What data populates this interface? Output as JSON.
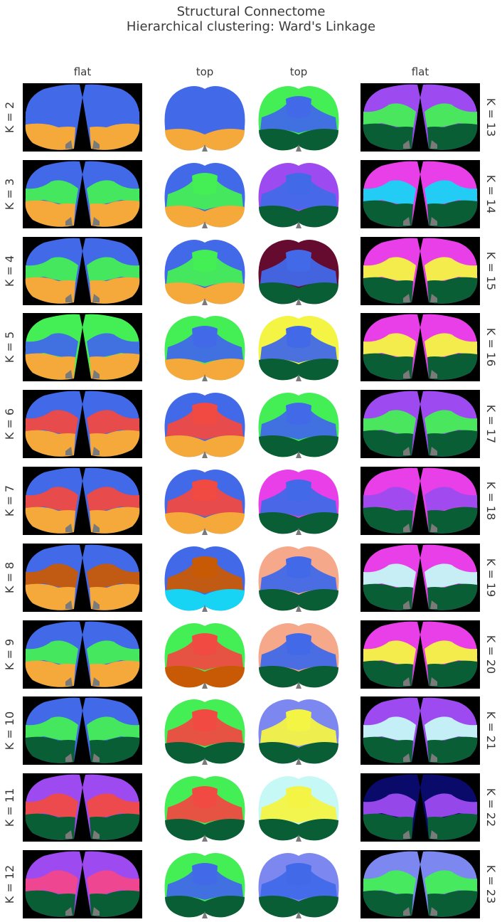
{
  "title_line1": "Structural Connectome",
  "title_line2": "Hierarchical clustering: Ward's Linkage",
  "column_headers": [
    "flat",
    "top",
    "top",
    "flat"
  ],
  "left_labels": [
    "K = 2",
    "K = 3",
    "K = 4",
    "K = 5",
    "K = 6",
    "K = 7",
    "K = 8",
    "K = 9",
    "K = 10",
    "K = 11",
    "K = 12"
  ],
  "right_labels": [
    "K = 13",
    "K = 14",
    "K = 15",
    "K = 16",
    "K = 17",
    "K = 18",
    "K = 19",
    "K = 20",
    "K = 21",
    "K = 22",
    "K = 23"
  ],
  "colors": {
    "blue": "#4169e8",
    "orange": "#f4a93a",
    "green": "#44ee55",
    "red": "#f04a42",
    "cyan": "#18d4f4",
    "darkorange": "#c85a06",
    "darkgreen": "#0a5e35",
    "purple": "#9d4bf0",
    "pink": "#f2468a",
    "lightpink": "#f59ac4",
    "maroon": "#650b30",
    "yellow": "#f4f445",
    "magenta": "#e83fe8",
    "salmon": "#f6a88a",
    "periwinkle": "#7d87f0",
    "lightcyan": "#c6f8f6",
    "navy": "#0a0a6a",
    "gray": "#7a7a7a"
  },
  "left_flat": [
    [
      "blue",
      "blue",
      "orange"
    ],
    [
      "blue",
      "green",
      "orange"
    ],
    [
      "blue",
      "green",
      "orange"
    ],
    [
      "green",
      "blue",
      "orange"
    ],
    [
      "blue",
      "red",
      "orange"
    ],
    [
      "blue",
      "red",
      "orange"
    ],
    [
      "blue",
      "darkorange",
      "orange"
    ],
    [
      "blue",
      "green",
      "orange"
    ],
    [
      "blue",
      "green",
      "darkgreen"
    ],
    [
      "purple",
      "red",
      "darkgreen"
    ],
    [
      "purple",
      "pink",
      "darkgreen"
    ]
  ],
  "left_top": [
    [
      "blue",
      "blue",
      "orange"
    ],
    [
      "blue",
      "green",
      "orange"
    ],
    [
      "blue",
      "green",
      "orange"
    ],
    [
      "green",
      "blue",
      "orange"
    ],
    [
      "blue",
      "red",
      "orange"
    ],
    [
      "blue",
      "red",
      "orange"
    ],
    [
      "blue",
      "darkorange",
      "cyan"
    ],
    [
      "green",
      "red",
      "darkorange"
    ],
    [
      "green",
      "red",
      "darkgreen"
    ],
    [
      "green",
      "red",
      "darkgreen"
    ],
    [
      "green",
      "blue",
      "darkgreen"
    ]
  ],
  "right_top": [
    [
      "green",
      "blue",
      "darkgreen"
    ],
    [
      "purple",
      "blue",
      "darkgreen"
    ],
    [
      "maroon",
      "blue",
      "darkgreen"
    ],
    [
      "yellow",
      "blue",
      "darkgreen"
    ],
    [
      "green",
      "blue",
      "darkgreen"
    ],
    [
      "magenta",
      "blue",
      "darkgreen"
    ],
    [
      "salmon",
      "blue",
      "darkgreen"
    ],
    [
      "salmon",
      "blue",
      "darkgreen"
    ],
    [
      "periwinkle",
      "yellow",
      "darkgreen"
    ],
    [
      "lightcyan",
      "yellow",
      "darkgreen"
    ],
    [
      "periwinkle",
      "blue",
      "darkgreen"
    ]
  ],
  "right_flat": [
    [
      "purple",
      "green",
      "darkgreen"
    ],
    [
      "magenta",
      "cyan",
      "darkgreen"
    ],
    [
      "magenta",
      "yellow",
      "darkgreen"
    ],
    [
      "magenta",
      "yellow",
      "darkgreen"
    ],
    [
      "purple",
      "green",
      "darkgreen"
    ],
    [
      "magenta",
      "purple",
      "darkgreen"
    ],
    [
      "magenta",
      "lightcyan",
      "darkgreen"
    ],
    [
      "magenta",
      "yellow",
      "darkgreen"
    ],
    [
      "purple",
      "lightcyan",
      "darkgreen"
    ],
    [
      "navy",
      "purple",
      "darkgreen"
    ],
    [
      "periwinkle",
      "green",
      "darkgreen"
    ]
  ]
}
